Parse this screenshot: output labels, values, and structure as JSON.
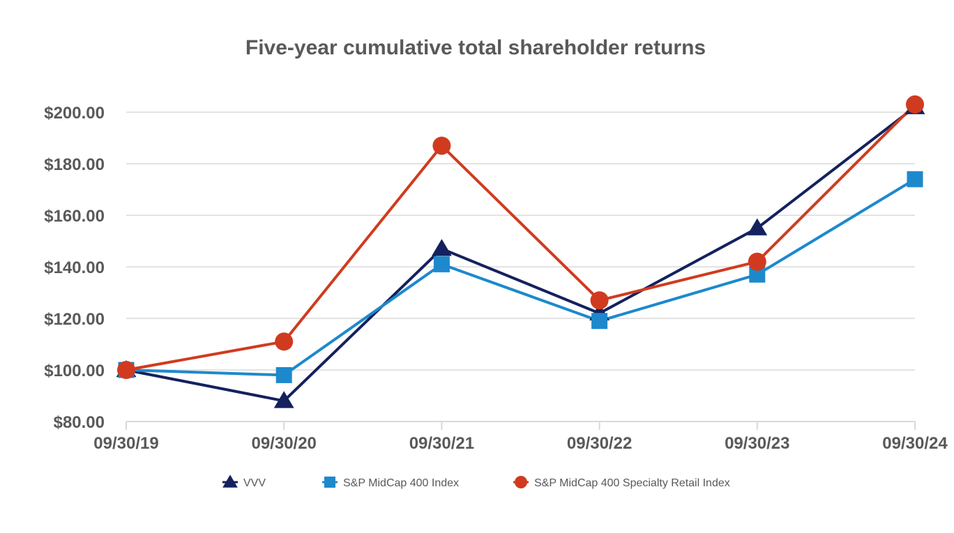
{
  "chart_data": {
    "type": "line",
    "title": "Five-year cumulative total shareholder returns",
    "xlabel": "",
    "ylabel": "",
    "categories": [
      "09/30/19",
      "09/30/20",
      "09/30/21",
      "09/30/22",
      "09/30/23",
      "09/30/24"
    ],
    "ylim": [
      80,
      200
    ],
    "yticks": [
      80,
      100,
      120,
      140,
      160,
      180,
      200
    ],
    "ytick_labels": [
      "$80.00",
      "$100.00",
      "$120.00",
      "$140.00",
      "$160.00",
      "$180.00",
      "$200.00"
    ],
    "grid": true,
    "legend_position": "bottom",
    "series": [
      {
        "name": "VVV",
        "marker": "triangle",
        "color": "#14215e",
        "values": [
          100,
          88,
          147,
          122,
          155,
          202
        ]
      },
      {
        "name": "S&P MidCap 400 Index",
        "marker": "square",
        "color": "#1d89cc",
        "values": [
          100,
          98,
          141,
          119,
          137,
          174
        ]
      },
      {
        "name": "S&P MidCap 400 Specialty Retail Index",
        "marker": "circle",
        "color": "#d03b1f",
        "values": [
          100,
          111,
          187,
          127,
          142,
          203
        ]
      }
    ]
  }
}
